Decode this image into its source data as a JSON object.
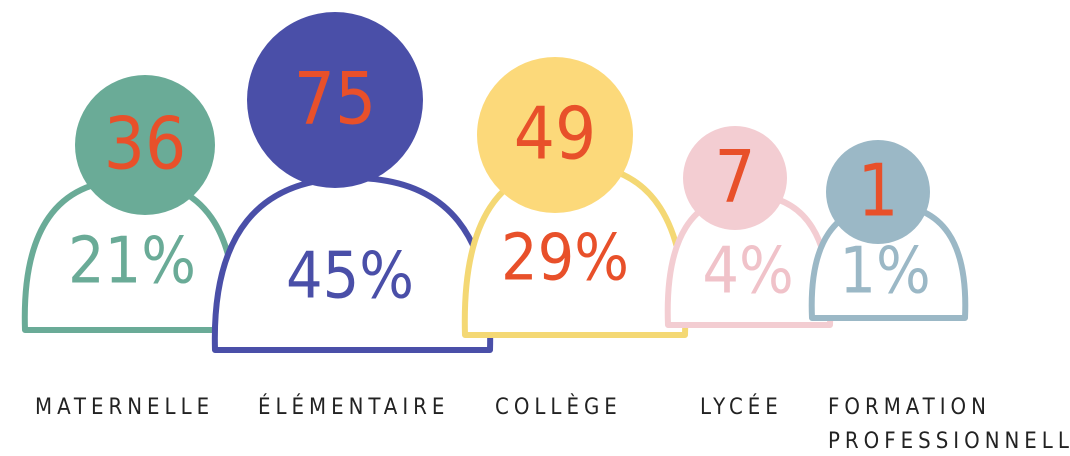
{
  "items": [
    {
      "count": "36",
      "percent": "21%",
      "label": [
        "MATERNELLE"
      ]
    },
    {
      "count": "75",
      "percent": "45%",
      "label": [
        "ÉLÉMENTAIRE"
      ]
    },
    {
      "count": "49",
      "percent": "29%",
      "label": [
        "COLLÈGE"
      ]
    },
    {
      "count": "7",
      "percent": "4%",
      "label": [
        "LYCÉE"
      ]
    },
    {
      "count": "1",
      "percent": "1%",
      "label": [
        "FORMATION",
        "PROFESSIONNELLE"
      ]
    }
  ]
}
